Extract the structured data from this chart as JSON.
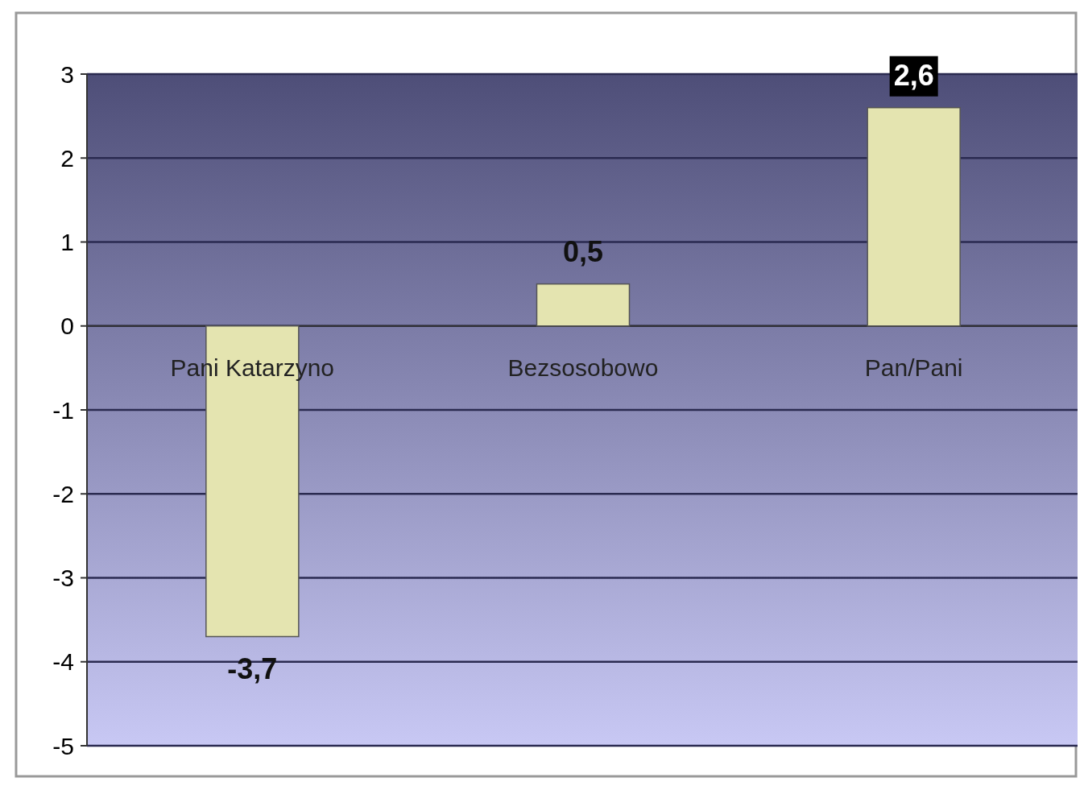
{
  "chart_data": {
    "type": "bar",
    "categories": [
      "Pani Katarzyno",
      "Bezsosobowo",
      "Pan/Pani"
    ],
    "values": [
      -3.7,
      0.5,
      2.6
    ],
    "color": "#e4e4b0",
    "value_labels": [
      "-3,7",
      "0,5",
      "2,6"
    ],
    "ylim": [
      -5,
      3
    ],
    "yticks": [
      -5,
      -4,
      -3,
      -2,
      -1,
      0,
      1,
      2,
      3
    ],
    "grid": "y"
  }
}
